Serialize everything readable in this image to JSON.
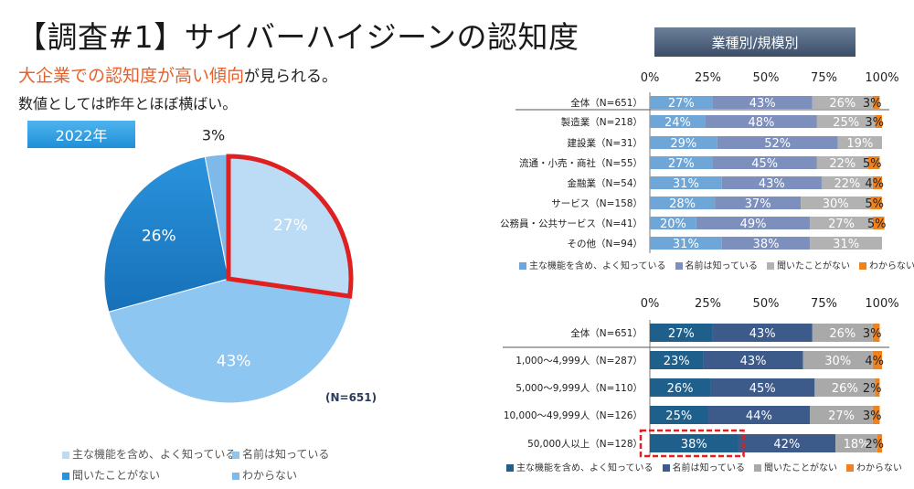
{
  "title": "【調査#1】サイバーハイジーンの認知度",
  "headline": {
    "highlight": "大企業での認知度が高い傾向",
    "rest": "が見られる。"
  },
  "subline": "数値としては昨年とほぼ横ばい。",
  "year_badge": "2022年",
  "segment_badge": "業種別/規模別",
  "pie_note": "(N=651)",
  "chart_data": [
    {
      "type": "pie",
      "title": "2022年",
      "categories": [
        "主な機能を含め、よく知っている",
        "名前は知っている",
        "聞いたことがない",
        "わからない"
      ],
      "values": [
        27,
        43,
        26,
        3
      ],
      "labels": [
        "27%",
        "43%",
        "26%",
        "3%"
      ],
      "n": "(N=651)",
      "highlighted": "主な機能を含め、よく知っている",
      "colors": [
        "#bcdcf6",
        "#8ec6f2",
        "#2a93dc",
        "#7fb9ea"
      ],
      "legend": [
        "主な機能を含め、よく知っている",
        "名前は知っている",
        "聞いたことがない",
        "わからない"
      ]
    },
    {
      "type": "bar",
      "orientation": "horizontal-stacked",
      "title": "業種別",
      "xlim": [
        0,
        100
      ],
      "ticks": [
        "0%",
        "25%",
        "50%",
        "75%",
        "100%"
      ],
      "categories": [
        "全体（N=651）",
        "製造業（N=218）",
        "建設業（N=31）",
        "流通・小売・商社（N=55）",
        "金融業（N=54）",
        "サービス（N=158）",
        "公務員・公共サービス（N=41）",
        "その他（N=94）"
      ],
      "series": [
        {
          "name": "主な機能を含め、よく知っている",
          "color": "#6fa6d8",
          "values": [
            27,
            24,
            29,
            27,
            31,
            28,
            20,
            31
          ]
        },
        {
          "name": "名前は知っている",
          "color": "#7d8fbd",
          "values": [
            43,
            48,
            52,
            45,
            43,
            37,
            49,
            38
          ]
        },
        {
          "name": "聞いたことがない",
          "color": "#b2b2b2",
          "values": [
            26,
            25,
            19,
            22,
            22,
            30,
            27,
            31
          ]
        },
        {
          "name": "わからない",
          "color": "#f0821e",
          "values": [
            3,
            3,
            0,
            5,
            4,
            5,
            5,
            0
          ]
        }
      ],
      "labels": [
        [
          "27%",
          "43%",
          "26%",
          "3%"
        ],
        [
          "24%",
          "48%",
          "25%",
          "3%"
        ],
        [
          "29%",
          "52%",
          "19%",
          ""
        ],
        [
          "27%",
          "45%",
          "22%",
          "5%"
        ],
        [
          "31%",
          "43%",
          "22%",
          "4%"
        ],
        [
          "28%",
          "37%",
          "30%",
          "5%"
        ],
        [
          "20%",
          "49%",
          "27%",
          "5%"
        ],
        [
          "31%",
          "38%",
          "31%",
          ""
        ]
      ]
    },
    {
      "type": "bar",
      "orientation": "horizontal-stacked",
      "title": "規模別",
      "xlim": [
        0,
        100
      ],
      "ticks": [
        "0%",
        "25%",
        "50%",
        "75%",
        "100%"
      ],
      "categories": [
        "全体（N=651）",
        "1,000～4,999人（N=287）",
        "5,000～9,999人（N=110）",
        "10,000～49,999人（N=126）",
        "50,000人以上（N=128）"
      ],
      "series": [
        {
          "name": "主な機能を含め、よく知っている",
          "color": "#1f5f8b",
          "values": [
            27,
            23,
            26,
            25,
            38
          ]
        },
        {
          "name": "名前は知っている",
          "color": "#3c5a8a",
          "values": [
            43,
            43,
            45,
            44,
            42
          ]
        },
        {
          "name": "聞いたことがない",
          "color": "#a9a9a9",
          "values": [
            26,
            30,
            26,
            27,
            18
          ]
        },
        {
          "name": "わからない",
          "color": "#f0821e",
          "values": [
            3,
            4,
            2,
            3,
            2
          ]
        }
      ],
      "labels": [
        [
          "27%",
          "43%",
          "26%",
          "3%"
        ],
        [
          "23%",
          "43%",
          "30%",
          "4%"
        ],
        [
          "26%",
          "45%",
          "26%",
          "2%"
        ],
        [
          "25%",
          "44%",
          "27%",
          "3%"
        ],
        [
          "38%",
          "42%",
          "18%",
          "2%"
        ]
      ],
      "highlighted_row": "50,000人以上（N=128）"
    }
  ]
}
